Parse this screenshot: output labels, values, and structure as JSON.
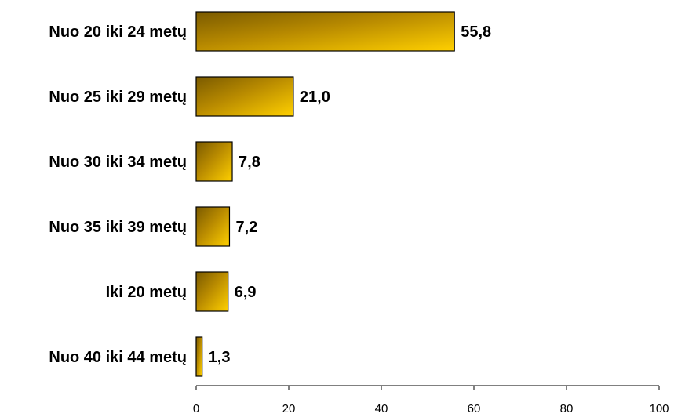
{
  "chart_data": {
    "type": "bar",
    "orientation": "horizontal",
    "categories": [
      "Nuo 20 iki 24 metų",
      "Nuo 25 iki 29 metų",
      "Nuo 30 iki 34 metų",
      "Nuo 35 iki 39 metų",
      "Iki 20 metų",
      "Nuo 40 iki 44 metų"
    ],
    "values": [
      55.8,
      21.0,
      7.8,
      7.2,
      6.9,
      1.3
    ],
    "value_labels": [
      "55,8",
      "21,0",
      "7,8",
      "7,2",
      "6,9",
      "1,3"
    ],
    "xlim": [
      0,
      100
    ],
    "xticks": [
      0,
      20,
      40,
      60,
      80,
      100
    ],
    "xtick_labels": [
      "0",
      "20",
      "40",
      "60",
      "80",
      "100"
    ],
    "title": "",
    "xlabel": "",
    "ylabel": "",
    "grid": false,
    "bar_gradient": [
      "#7a5a00",
      "#b88a00",
      "#ffd000"
    ],
    "bar_stroke": "#000000"
  }
}
